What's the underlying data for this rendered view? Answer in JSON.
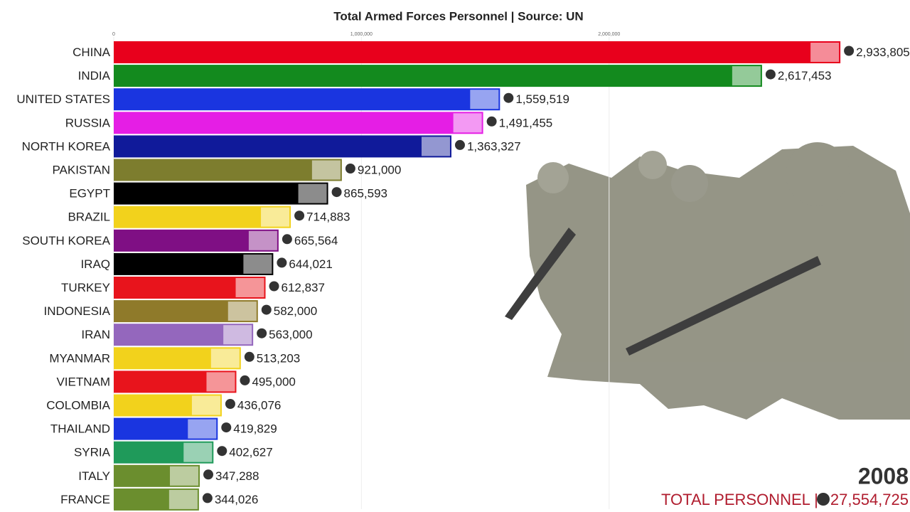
{
  "chart_data": {
    "type": "bar",
    "orientation": "horizontal",
    "title": "Total Armed Forces Personnel | Source: UN",
    "categories": [
      "CHINA",
      "INDIA",
      "UNITED STATES",
      "RUSSIA",
      "NORTH KOREA",
      "PAKISTAN",
      "EGYPT",
      "BRAZIL",
      "SOUTH KOREA",
      "IRAQ",
      "TURKEY",
      "INDONESIA",
      "IRAN",
      "MYANMAR",
      "VIETNAM",
      "COLOMBIA",
      "THAILAND",
      "SYRIA",
      "ITALY",
      "FRANCE"
    ],
    "values": [
      2933805,
      2617453,
      1559519,
      1491455,
      1363327,
      921000,
      865593,
      714883,
      665564,
      644021,
      612837,
      582000,
      563000,
      513203,
      495000,
      436076,
      419829,
      402627,
      347288,
      344026
    ],
    "value_labels": [
      "2,933,805",
      "2,617,453",
      "1,559,519",
      "1,491,455",
      "1,363,327",
      "921,000",
      "865,593",
      "714,883",
      "665,564",
      "644,021",
      "612,837",
      "582,000",
      "563,000",
      "513,203",
      "495,000",
      "436,076",
      "419,829",
      "402,627",
      "347,288",
      "344,026"
    ],
    "colors": [
      "#e8001c",
      "#138a1e",
      "#1a35e0",
      "#e51ee5",
      "#101a9a",
      "#7d7d2e",
      "#000000",
      "#f2d21c",
      "#7f0f84",
      "#000000",
      "#e8141c",
      "#8f7a2a",
      "#9467bd",
      "#f2d21c",
      "#e8141c",
      "#f2d21c",
      "#1a35e0",
      "#1f9a5a",
      "#6b8e2e",
      "#6b8e2e"
    ],
    "xlim": [
      0,
      3100000
    ],
    "xticks": [
      0,
      {
        "value": 1000000,
        "label": "1,000,000"
      },
      {
        "value": 2000000,
        "label": "2,000,000"
      }
    ],
    "year": "2008",
    "total": {
      "label": "TOTAL PERSONNEL |",
      "value": 27554725,
      "value_label": "27,554,725"
    }
  }
}
